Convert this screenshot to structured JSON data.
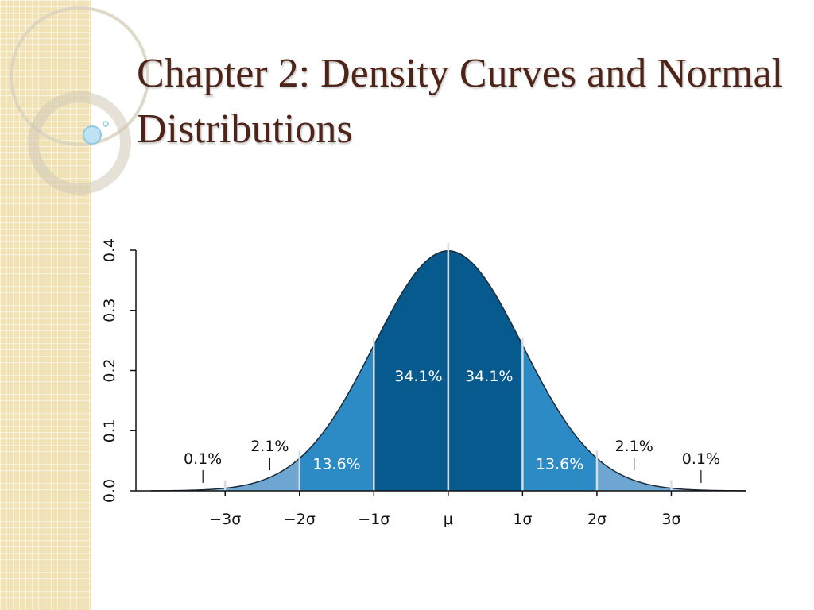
{
  "slide": {
    "title": "Chapter 2: Density Curves and Normal Distributions"
  },
  "colors": {
    "sidebar": "#f1e2b6",
    "title": "#4d2417",
    "band_outer": "#6ea6d2",
    "band_second": "#2c8ac4",
    "band_center": "#075a8e",
    "axis": "#111111"
  },
  "chart_data": {
    "type": "area",
    "distribution": "normal",
    "mu": 0,
    "sigma": 1,
    "x_ticks": [
      {
        "value": -3,
        "label": "−3σ"
      },
      {
        "value": -2,
        "label": "−2σ"
      },
      {
        "value": -1,
        "label": "−1σ"
      },
      {
        "value": 0,
        "label": "μ"
      },
      {
        "value": 1,
        "label": "1σ"
      },
      {
        "value": 2,
        "label": "2σ"
      },
      {
        "value": 3,
        "label": "3σ"
      }
    ],
    "y_ticks": [
      {
        "value": 0.0,
        "label": "0.0"
      },
      {
        "value": 0.1,
        "label": "0.1"
      },
      {
        "value": 0.2,
        "label": "0.2"
      },
      {
        "value": 0.3,
        "label": "0.3"
      },
      {
        "value": 0.4,
        "label": "0.4"
      }
    ],
    "xlim": [
      -4,
      4
    ],
    "ylim": [
      0,
      0.4
    ],
    "regions": [
      {
        "from": -4,
        "to": -3,
        "percent": "0.1%",
        "color": "#9cc4e2"
      },
      {
        "from": -3,
        "to": -2,
        "percent": "2.1%",
        "color": "#6ea6d2"
      },
      {
        "from": -2,
        "to": -1,
        "percent": "13.6%",
        "color": "#2c8ac4"
      },
      {
        "from": -1,
        "to": 0,
        "percent": "34.1%",
        "color": "#075a8e"
      },
      {
        "from": 0,
        "to": 1,
        "percent": "34.1%",
        "color": "#075a8e"
      },
      {
        "from": 1,
        "to": 2,
        "percent": "13.6%",
        "color": "#2c8ac4"
      },
      {
        "from": 2,
        "to": 3,
        "percent": "2.1%",
        "color": "#6ea6d2"
      },
      {
        "from": 3,
        "to": 4,
        "percent": "0.1%",
        "color": "#9cc4e2"
      }
    ],
    "labels": [
      {
        "text": "0.1%",
        "x": -3.3,
        "y": 0.045,
        "color": "#111111",
        "pointer": true
      },
      {
        "text": "2.1%",
        "x": -2.4,
        "y": 0.066,
        "color": "#111111",
        "pointer": true
      },
      {
        "text": "13.6%",
        "x": -1.5,
        "y": 0.036,
        "color": "#ffffff",
        "pointer": false
      },
      {
        "text": "34.1%",
        "x": -0.4,
        "y": 0.182,
        "color": "#ffffff",
        "pointer": false
      },
      {
        "text": "34.1%",
        "x": 0.55,
        "y": 0.182,
        "color": "#ffffff",
        "pointer": false
      },
      {
        "text": "13.6%",
        "x": 1.5,
        "y": 0.036,
        "color": "#ffffff",
        "pointer": false
      },
      {
        "text": "2.1%",
        "x": 2.5,
        "y": 0.066,
        "color": "#111111",
        "pointer": true
      },
      {
        "text": "0.1%",
        "x": 3.4,
        "y": 0.045,
        "color": "#111111",
        "pointer": true
      }
    ],
    "grid": false,
    "legend": "none"
  }
}
